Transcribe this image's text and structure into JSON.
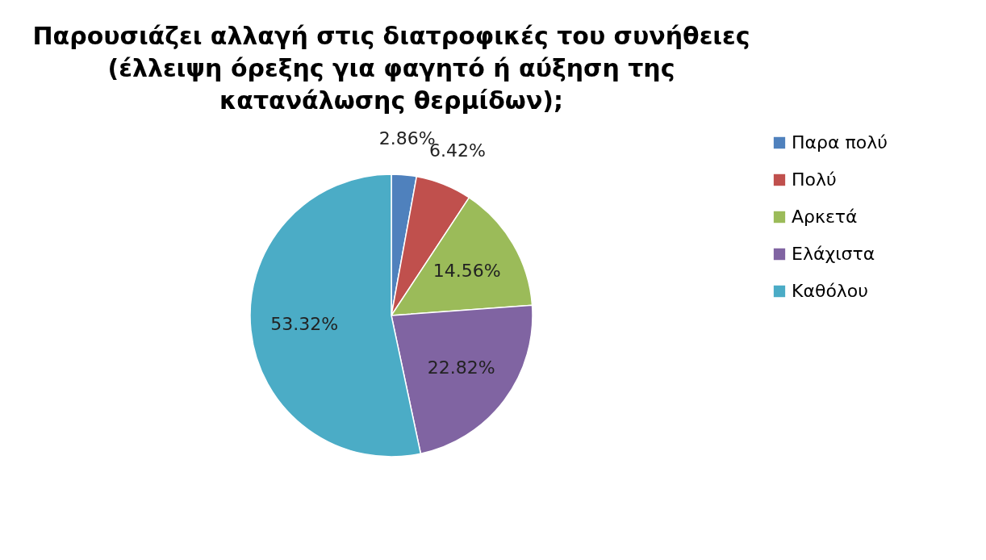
{
  "chart_data": {
    "type": "pie",
    "title": "Παρουσιάζει αλλαγή στις διατροφικές του συνήθειες (έλλειψη όρεξης για φαγητό ή αύξηση της κατανάλωσης θερμίδων);",
    "categories": [
      "Παρα πολύ",
      "Πολύ",
      "Αρκετά",
      "Ελάχιστα",
      "Καθόλου"
    ],
    "values": [
      2.86,
      6.42,
      14.56,
      22.82,
      53.32
    ],
    "colors": [
      "#4f81bd",
      "#c0504d",
      "#9bbb59",
      "#8064a2",
      "#4bacc6"
    ],
    "value_labels": [
      "2.86%",
      "6.42%",
      "14.56%",
      "22.82%",
      "53.32%"
    ],
    "legend": "right"
  }
}
